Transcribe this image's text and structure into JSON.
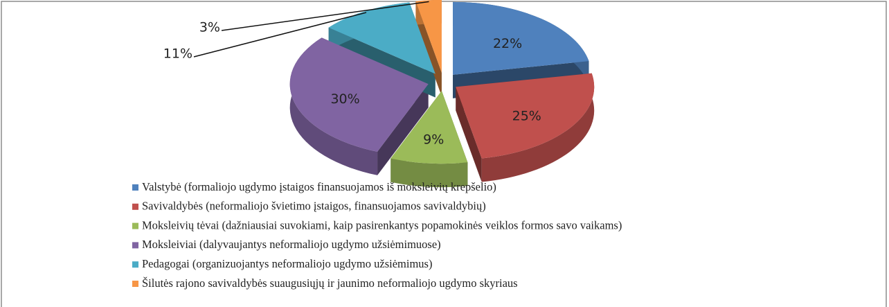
{
  "chart_data": {
    "type": "pie",
    "categories": [
      "Valstybė (formaliojo ugdymo įstaigos finansuojamos iš moksleivių krepšelio)",
      "Savivaldybės (neformaliojo švietimo įstaigos, finansuojamos savivaldybių)",
      "Moksleivių tėvai (dažniausiai suvokiami, kaip pasirenkantys popamokinės veiklos formos savo vaikams)",
      "Moksleiviai (dalyvaujantys neformaliojo ugdymo užsiėmimuose)",
      "Pedagogai (organizuojantys neformaliojo ugdymo užsiėmimus)",
      "Šilutės rajono savivaldybės suaugusiųjų ir jaunimo neformaliojo ugdymo skyriaus"
    ],
    "values": [
      22,
      25,
      9,
      30,
      11,
      3
    ],
    "value_labels": [
      "22%",
      "25%",
      "9%",
      "30%",
      "11%",
      "3%"
    ],
    "colors": [
      "#4f81bd",
      "#c0504d",
      "#9bbb59",
      "#8064a2",
      "#4bacc6",
      "#f79646"
    ]
  }
}
